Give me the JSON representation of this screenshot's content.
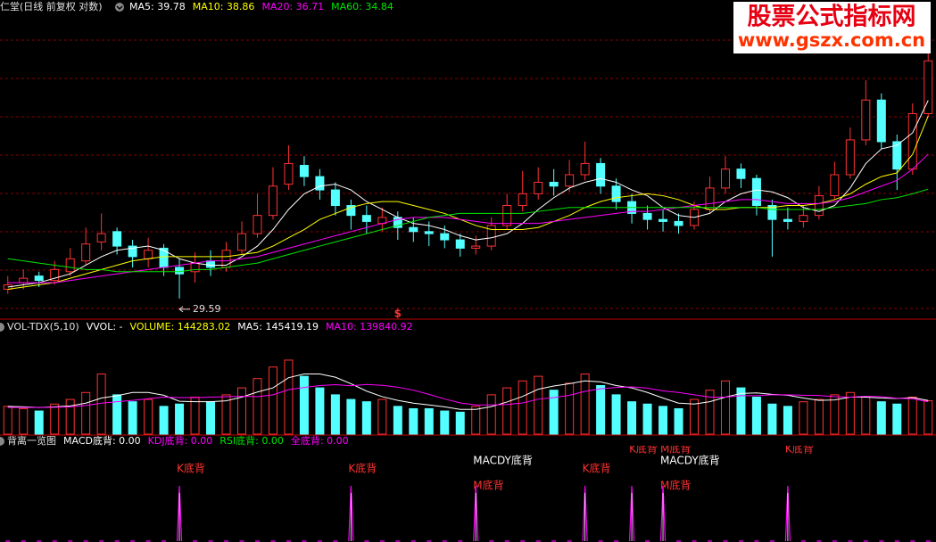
{
  "header": {
    "title": "仁堂(日线 前复权 对数)"
  },
  "watermark": {
    "title": "股票公式指标网",
    "url": "www.gszx.com.cn"
  },
  "chart_data": [
    {
      "type": "candlestick",
      "log_scale": true,
      "ylim": [
        29,
        45
      ],
      "grid": true,
      "up_color": "#ff3232",
      "down_color": "#54ffff",
      "open": [
        30.0,
        30.3,
        30.6,
        30.4,
        30.8,
        31.3,
        32.2,
        32.7,
        32.0,
        31.4,
        31.9,
        31.0,
        30.8,
        31.3,
        31.0,
        31.8,
        32.6,
        33.5,
        35.1,
        36.1,
        35.5,
        34.8,
        34.0,
        33.5,
        33.1,
        33.4,
        32.9,
        32.7,
        32.6,
        32.3,
        31.9,
        32.0,
        33.0,
        34.0,
        34.6,
        35.2,
        35.0,
        35.6,
        36.2,
        35.0,
        34.2,
        33.6,
        33.3,
        33.2,
        33.0,
        33.8,
        34.9,
        35.9,
        35.4,
        34.0,
        33.3,
        33.2,
        33.5,
        34.5,
        35.6,
        37.5,
        39.8,
        37.4,
        35.9,
        39.0
      ],
      "high": [
        30.6,
        30.9,
        30.8,
        31.3,
        31.9,
        32.9,
        33.6,
        32.9,
        32.3,
        32.4,
        32.1,
        31.4,
        31.7,
        31.8,
        32.2,
        33.2,
        34.6,
        36.0,
        37.2,
        36.6,
        35.9,
        35.2,
        34.3,
        34.0,
        33.9,
        33.7,
        33.4,
        33.2,
        33.0,
        32.6,
        32.5,
        33.4,
        34.6,
        35.8,
        36.0,
        35.9,
        36.4,
        37.4,
        36.5,
        35.4,
        34.6,
        34.0,
        33.8,
        33.6,
        34.2,
        35.5,
        36.6,
        36.2,
        35.6,
        34.3,
        33.9,
        34.0,
        35.0,
        36.3,
        38.2,
        41.0,
        40.2,
        37.8,
        39.6,
        44.0
      ],
      "low": [
        29.8,
        30.0,
        30.1,
        30.2,
        30.6,
        31.1,
        31.8,
        31.6,
        31.0,
        31.0,
        30.6,
        29.59,
        30.3,
        30.6,
        30.8,
        31.6,
        32.4,
        33.3,
        34.8,
        35.0,
        34.3,
        33.5,
        32.8,
        32.6,
        32.7,
        32.3,
        32.2,
        32.0,
        31.9,
        31.5,
        31.6,
        31.8,
        32.8,
        33.7,
        34.3,
        34.5,
        34.7,
        35.3,
        34.6,
        33.8,
        33.1,
        32.8,
        32.7,
        32.6,
        32.8,
        33.6,
        34.6,
        34.9,
        33.5,
        31.5,
        32.8,
        32.9,
        33.3,
        34.3,
        35.4,
        37.2,
        37.0,
        34.8,
        35.6,
        38.8
      ],
      "close": [
        30.2,
        30.5,
        30.4,
        30.9,
        31.4,
        32.1,
        32.6,
        32.0,
        31.5,
        31.8,
        31.0,
        30.7,
        31.2,
        31.0,
        31.8,
        32.6,
        33.5,
        35.0,
        36.2,
        35.5,
        34.8,
        34.0,
        33.5,
        33.2,
        33.4,
        32.9,
        32.7,
        32.6,
        32.3,
        31.9,
        32.0,
        33.0,
        34.0,
        34.6,
        35.2,
        35.0,
        35.6,
        36.2,
        35.0,
        34.2,
        33.6,
        33.3,
        33.2,
        33.0,
        33.8,
        34.9,
        35.9,
        35.4,
        34.0,
        33.3,
        33.2,
        33.5,
        34.5,
        35.6,
        37.5,
        39.8,
        37.4,
        35.9,
        39.0,
        42.2
      ],
      "series": [
        {
          "name": "MA5: 39.78",
          "color": "#ffffff",
          "values": [
            30.1,
            30.2,
            30.3,
            30.5,
            30.7,
            31.1,
            31.5,
            31.8,
            31.9,
            32.0,
            31.8,
            31.4,
            31.2,
            31.1,
            31.1,
            31.5,
            32.0,
            32.8,
            33.8,
            34.6,
            35.0,
            35.1,
            34.8,
            34.2,
            33.8,
            33.4,
            33.1,
            33.0,
            32.8,
            32.5,
            32.3,
            32.4,
            32.6,
            33.1,
            33.8,
            34.4,
            34.9,
            35.2,
            35.4,
            35.2,
            34.8,
            34.5,
            33.9,
            33.5,
            33.4,
            33.6,
            34.2,
            34.6,
            34.8,
            34.7,
            34.4,
            33.9,
            33.7,
            34.0,
            34.9,
            36.2,
            37.0,
            37.2,
            37.9,
            39.78
          ]
        },
        {
          "name": "MA10: 38.86",
          "color": "#ffff00",
          "values": [
            30.0,
            30.1,
            30.2,
            30.3,
            30.5,
            30.7,
            30.9,
            31.1,
            31.3,
            31.4,
            31.5,
            31.5,
            31.5,
            31.5,
            31.5,
            31.6,
            31.7,
            32.0,
            32.4,
            32.8,
            33.3,
            33.6,
            33.9,
            34.1,
            34.2,
            34.2,
            34.0,
            33.8,
            33.6,
            33.3,
            33.0,
            32.8,
            32.8,
            32.8,
            32.9,
            33.2,
            33.5,
            33.9,
            34.2,
            34.4,
            34.5,
            34.6,
            34.5,
            34.3,
            34.0,
            33.8,
            33.8,
            33.9,
            33.9,
            33.9,
            34.0,
            34.0,
            34.1,
            34.3,
            34.6,
            35.1,
            35.5,
            35.7,
            36.7,
            38.86
          ]
        },
        {
          "name": "MA20: 36.71",
          "color": "#ff00ff",
          "values": [
            30.3,
            30.3,
            30.3,
            30.3,
            30.4,
            30.5,
            30.6,
            30.7,
            30.8,
            30.9,
            31.0,
            31.1,
            31.2,
            31.3,
            31.3,
            31.4,
            31.5,
            31.7,
            31.9,
            32.1,
            32.3,
            32.5,
            32.7,
            32.9,
            33.1,
            33.3,
            33.4,
            33.4,
            33.4,
            33.3,
            33.2,
            33.1,
            33.1,
            33.1,
            33.1,
            33.2,
            33.3,
            33.4,
            33.5,
            33.6,
            33.7,
            33.7,
            33.8,
            33.9,
            34.0,
            34.1,
            34.2,
            34.3,
            34.3,
            34.2,
            34.1,
            34.1,
            34.1,
            34.2,
            34.4,
            34.7,
            35.0,
            35.3,
            35.9,
            36.71
          ]
        },
        {
          "name": "MA60: 34.84",
          "color": "#00e600",
          "values": [
            31.4,
            31.3,
            31.2,
            31.1,
            31.0,
            30.9,
            30.9,
            30.8,
            30.8,
            30.8,
            30.8,
            30.8,
            30.9,
            30.9,
            31.0,
            31.1,
            31.2,
            31.4,
            31.6,
            31.8,
            32.0,
            32.2,
            32.4,
            32.6,
            32.8,
            33.0,
            33.2,
            33.4,
            33.5,
            33.6,
            33.6,
            33.6,
            33.6,
            33.6,
            33.7,
            33.8,
            33.9,
            33.9,
            33.9,
            33.9,
            33.9,
            33.9,
            33.9,
            33.9,
            33.9,
            33.9,
            33.9,
            33.9,
            33.9,
            33.8,
            33.8,
            33.8,
            33.8,
            33.9,
            34.0,
            34.1,
            34.3,
            34.4,
            34.6,
            34.84
          ]
        }
      ],
      "annotations": [
        {
          "x": 11,
          "y": 29.59,
          "label": "29.59"
        }
      ],
      "markers": [
        {
          "x": 25,
          "label": "$"
        }
      ]
    },
    {
      "type": "volume",
      "title": "VOL-TDX(5,10)",
      "ylim": [
        0,
        420000
      ],
      "legend": [
        {
          "label": "VVOL: -",
          "color": "#ffffff"
        },
        {
          "label": "VOLUME: 144283.02",
          "color": "#ffff00"
        }
      ],
      "values": [
        120000,
        110000,
        100000,
        130000,
        150000,
        180000,
        260000,
        170000,
        140000,
        150000,
        120000,
        130000,
        160000,
        140000,
        170000,
        200000,
        240000,
        290000,
        320000,
        250000,
        200000,
        170000,
        150000,
        140000,
        150000,
        120000,
        110000,
        110000,
        100000,
        95000,
        120000,
        170000,
        200000,
        230000,
        250000,
        190000,
        220000,
        260000,
        210000,
        170000,
        140000,
        130000,
        120000,
        110000,
        150000,
        190000,
        230000,
        200000,
        160000,
        130000,
        120000,
        140000,
        150000,
        170000,
        180000,
        160000,
        140000,
        130000,
        160000,
        144283.02
      ],
      "series": [
        {
          "name": "MA5: 145419.19",
          "color": "#ffffff",
          "values": [
            120000,
            118000,
            115000,
            118000,
            122000,
            134000,
            156000,
            166000,
            180000,
            180000,
            168000,
            142000,
            140000,
            140000,
            144000,
            160000,
            182000,
            200000,
            244000,
            260000,
            260000,
            246000,
            218000,
            186000,
            162000,
            146000,
            134000,
            126000,
            118000,
            107000,
            107000,
            119000,
            139000,
            163000,
            194000,
            208000,
            218000,
            230000,
            226000,
            210000,
            200000,
            180000,
            156000,
            134000,
            130000,
            140000,
            160000,
            176000,
            178000,
            172000,
            168000,
            156000,
            146000,
            148000,
            160000,
            160000,
            156000,
            154000,
            158000,
            145419.19
          ]
        },
        {
          "name": "MA10: 139840.92",
          "color": "#ff00ff",
          "values": [
            115000,
            115000,
            115000,
            116000,
            118000,
            124000,
            134000,
            140000,
            146000,
            153000,
            160000,
            158000,
            158000,
            160000,
            162000,
            164000,
            162000,
            170000,
            192000,
            202000,
            210000,
            214000,
            209000,
            215000,
            211000,
            203000,
            190000,
            172000,
            152000,
            135000,
            126000,
            126000,
            128000,
            135000,
            151000,
            158000,
            168000,
            185000,
            196000,
            202000,
            204000,
            199000,
            187000,
            180000,
            170000,
            160000,
            160000,
            166000,
            166000,
            170000,
            170000,
            168000,
            167000,
            162000,
            160000,
            164000,
            162000,
            155000,
            153000,
            139840.92
          ]
        }
      ]
    },
    {
      "type": "signal",
      "title": "背离一览图",
      "ylim": [
        0,
        1
      ],
      "color": "#ff00ff",
      "legend": [
        {
          "label": "MACD底背: 0.00",
          "color": "#ffffff"
        },
        {
          "label": "KDJ底背: 0.00",
          "color": "#ff00ff"
        },
        {
          "label": "RSI底背: 0.00",
          "color": "#00e600"
        },
        {
          "label": "全底背: 0.00",
          "color": "#ff00ff"
        }
      ],
      "values": [
        0,
        0,
        0,
        0,
        0,
        0,
        0,
        0,
        0,
        0,
        0,
        1,
        0,
        0,
        0,
        0,
        0,
        0,
        0,
        0,
        0,
        0,
        1,
        0,
        0,
        0,
        0,
        0,
        0,
        0,
        1,
        0,
        0,
        0,
        0,
        0,
        0,
        1,
        0,
        0,
        1,
        0,
        1,
        0,
        0,
        0,
        0,
        0,
        0,
        0,
        1,
        0,
        0,
        0,
        0,
        0,
        0,
        0,
        0,
        0
      ],
      "signals": [
        {
          "x": 11,
          "labels": {
            "kdj": "K底背"
          }
        },
        {
          "x": 22,
          "labels": {
            "kdj": "K底背"
          }
        },
        {
          "x": 30,
          "labels": {
            "macdy": "MACDY底背",
            "macd": "M底背"
          }
        },
        {
          "x": 37,
          "labels": {
            "kdj": "K底背"
          }
        },
        {
          "x": 40,
          "labels": {
            "top": "K底背"
          }
        },
        {
          "x": 42,
          "labels": {
            "top": "M底背",
            "macdy": "MACDY底背",
            "macd": "M底背"
          }
        },
        {
          "x": 50,
          "labels": {
            "top": "K底背"
          }
        }
      ]
    }
  ]
}
